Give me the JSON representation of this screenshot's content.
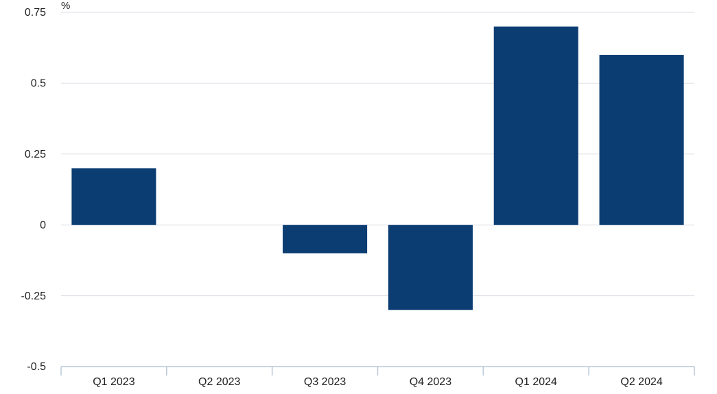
{
  "chart_data": {
    "type": "bar",
    "unit": "%",
    "categories": [
      "Q1 2023",
      "Q2 2023",
      "Q3 2023",
      "Q4 2023",
      "Q1 2024",
      "Q2 2024"
    ],
    "values": [
      0.2,
      0.0,
      -0.1,
      -0.3,
      0.7,
      0.6
    ],
    "ylim": [
      -0.5,
      0.75
    ],
    "yticks": [
      0.75,
      0.5,
      0.25,
      0,
      -0.25,
      -0.5
    ],
    "ytick_labels": [
      "0.75",
      "0.5",
      "0.25",
      "0",
      "-0.25",
      "-0.5"
    ],
    "bar_color": "#0b3d73",
    "grid": true,
    "legend": "none"
  }
}
